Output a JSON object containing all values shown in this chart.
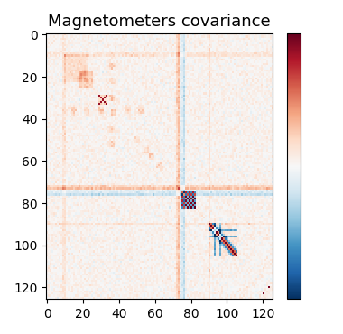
{
  "title": "Magnetometers covariance",
  "title_fontsize": 13,
  "cmap": "RdBu_r",
  "matrix_size": 126,
  "figsize": [
    3.8,
    3.7
  ],
  "dpi": 100,
  "vmin": -0.3,
  "vmax": 0.3,
  "xticks": [
    0,
    20,
    40,
    60,
    80,
    100,
    120
  ],
  "yticks": [
    0,
    20,
    40,
    60,
    80,
    100,
    120
  ]
}
